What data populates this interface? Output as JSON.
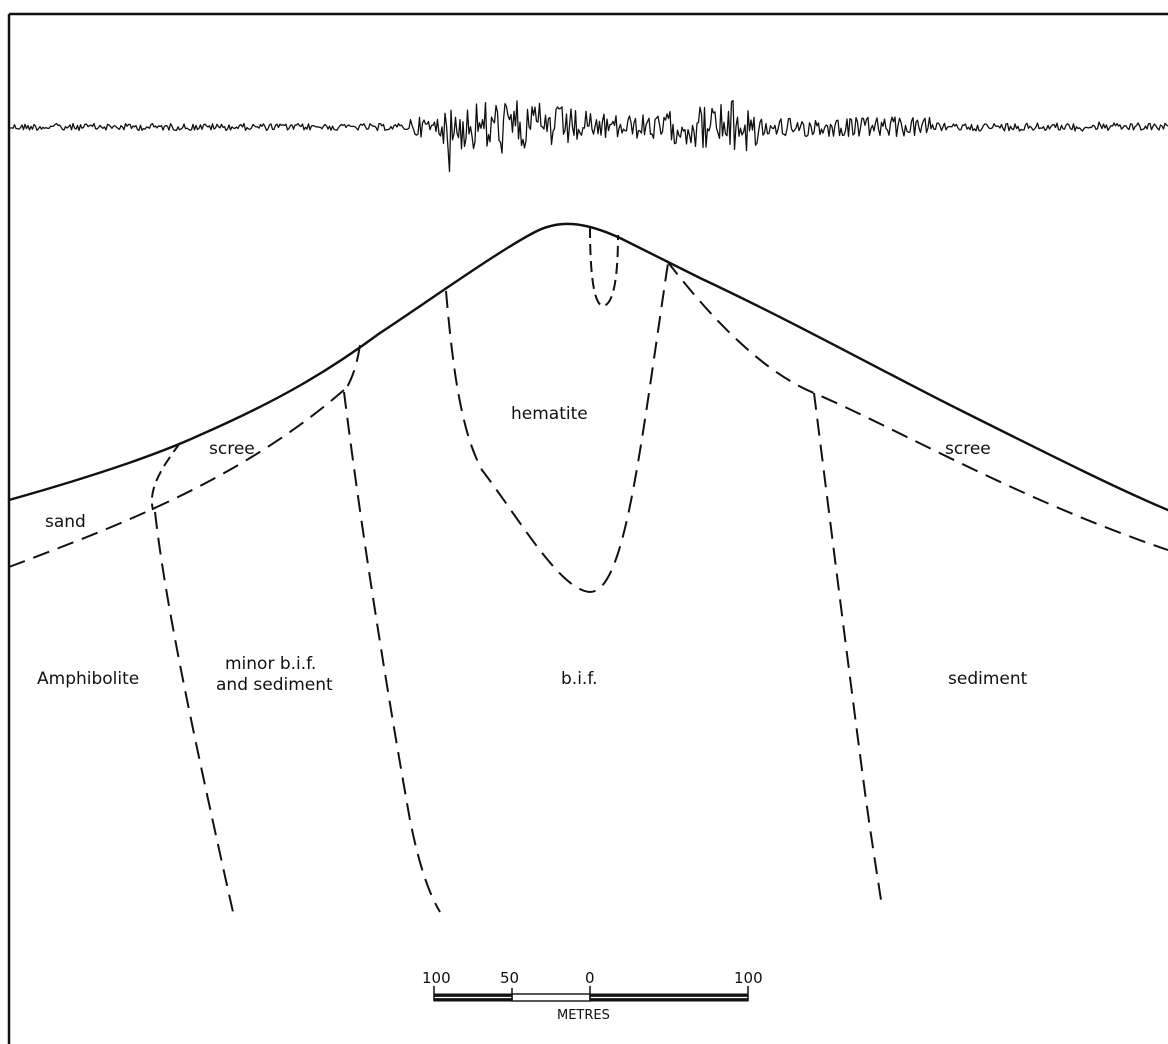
{
  "units": {
    "amphibolite": "Amphibolite",
    "minor_bif": "minor b.i.f.",
    "and_sediment": "and sediment",
    "bif": "b.i.f.",
    "sediment": "sediment",
    "hematite": "hematite",
    "sand": "sand",
    "scree_left": "scree",
    "scree_right": "scree"
  },
  "scale_bar": {
    "ticks": [
      "100",
      "50",
      "0",
      "100"
    ],
    "unit": "METRES"
  }
}
